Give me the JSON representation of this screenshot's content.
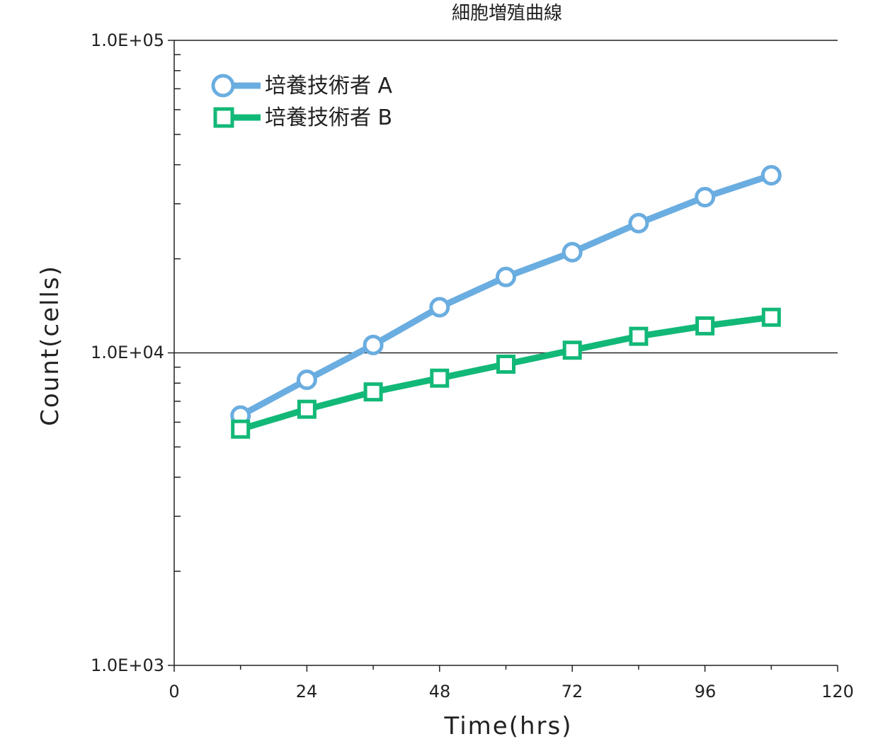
{
  "chart_data": {
    "type": "line",
    "title": "細胞増殖曲線",
    "xlabel": "Time(hrs)",
    "ylabel": "Count(cells)",
    "xlim": [
      0,
      120
    ],
    "ylim": [
      1000,
      100000
    ],
    "yscale": "log",
    "x_ticks": [
      "0",
      "24",
      "48",
      "72",
      "96",
      "120"
    ],
    "y_ticks": [
      "1.0E+03",
      "1.0E+04",
      "1.0E+05"
    ],
    "grid": "horizontal lines at 1.0E+04 and 1.0E+05",
    "legend_position": "top-left",
    "x": [
      12,
      24,
      36,
      48,
      60,
      72,
      84,
      96,
      108
    ],
    "series": [
      {
        "name": "培養技術者 A",
        "marker": "circle",
        "color": "#6aade0",
        "values": [
          6300,
          8200,
          10600,
          14000,
          17500,
          21000,
          26000,
          31500,
          37000
        ]
      },
      {
        "name": "培養技術者 B",
        "marker": "square",
        "color": "#12b877",
        "values": [
          5700,
          6600,
          7500,
          8300,
          9200,
          10200,
          11300,
          12200,
          13000
        ]
      }
    ]
  }
}
